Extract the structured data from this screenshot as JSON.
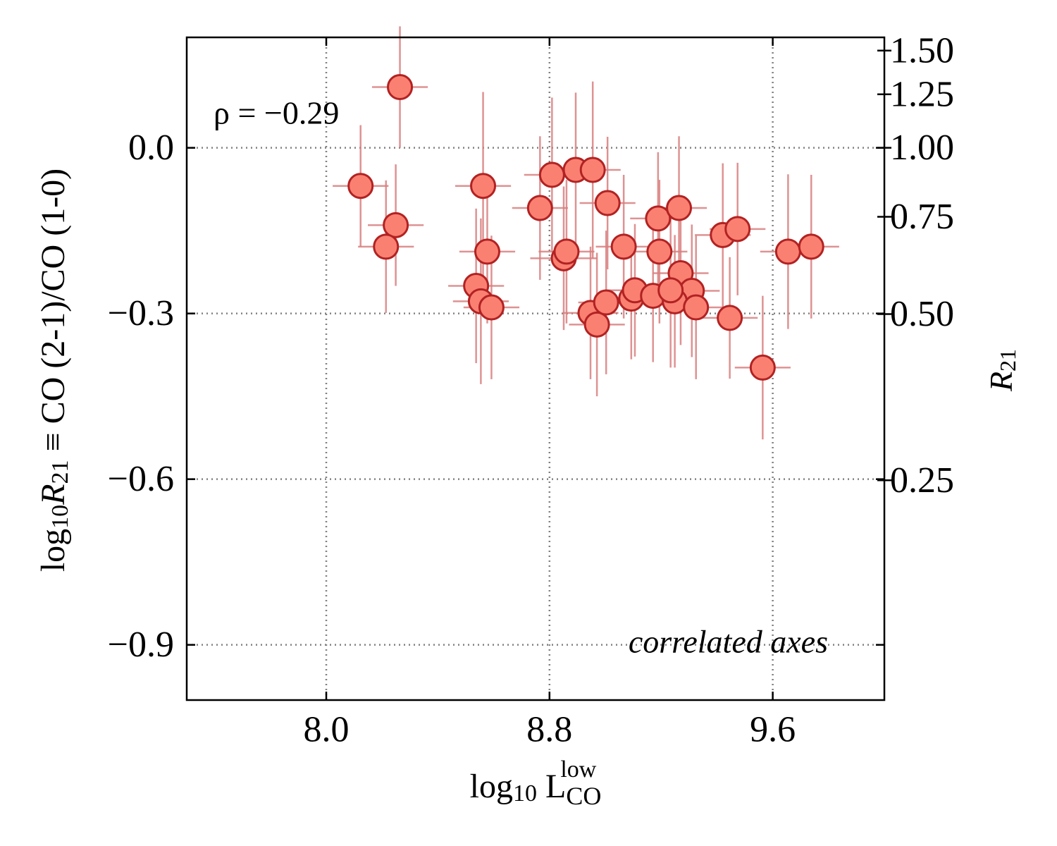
{
  "chart_data": {
    "type": "scatter",
    "annotations": [
      "ρ = −0.29",
      "correlated axes"
    ],
    "xlabel": [
      "log",
      "10",
      " L",
      "CO",
      "low"
    ],
    "ylabel": [
      "log",
      "10",
      "R",
      "21",
      " ≡ CO (2-1)/CO (1-0)"
    ],
    "y2label": [
      "R",
      "21"
    ],
    "xlim": [
      7.5,
      10.0
    ],
    "ylim": [
      -1.0,
      0.2
    ],
    "y2lim": [
      0.1,
      1.585
    ],
    "y2scale": "log",
    "xticks": [
      {
        "value": 8.0,
        "label": "8.0"
      },
      8.8,
      9.6
    ],
    "yticks": [
      {
        "value": -0.9,
        "label": "−0.9"
      },
      {
        "value": -0.6,
        "label": "−0.6"
      },
      {
        "value": -0.3,
        "label": "−0.3"
      },
      {
        "value": 0,
        "label": "0.0"
      }
    ],
    "y2ticks": [
      0.25,
      {
        "value": 0.5,
        "label": "0.50"
      },
      0.75,
      {
        "value": 1.0,
        "label": "1.00"
      },
      1.25,
      {
        "value": 1.5,
        "label": "1.50"
      }
    ],
    "grid": true,
    "series": [
      {
        "color": "#fa8072",
        "edgecolor": "#b22222",
        "errorcolor": "#d98080",
        "x": [
          8.264,
          8.123,
          8.249,
          8.214,
          8.562,
          8.577,
          8.537,
          8.554,
          8.592,
          8.766,
          8.809,
          8.894,
          8.955,
          8.851,
          8.861,
          9.008,
          9.066,
          8.947,
          8.97,
          9.003,
          9.093,
          9.106,
          9.171,
          9.189,
          9.194,
          9.264,
          9.27,
          9.31,
          9.249,
          9.234,
          9.325,
          9.421,
          9.474,
          9.446,
          9.564,
          9.655,
          9.738
        ],
        "y": [
          0.11,
          -0.069,
          -0.14,
          -0.179,
          -0.069,
          -0.188,
          -0.25,
          -0.278,
          -0.289,
          -0.109,
          -0.049,
          -0.04,
          -0.04,
          -0.2,
          -0.188,
          -0.1,
          -0.179,
          -0.299,
          -0.32,
          -0.28,
          -0.273,
          -0.258,
          -0.268,
          -0.128,
          -0.188,
          -0.109,
          -0.227,
          -0.259,
          -0.278,
          -0.258,
          -0.289,
          -0.158,
          -0.147,
          -0.308,
          -0.398,
          -0.188,
          -0.179
        ],
        "xerr": [
          0.1,
          0.1,
          0.1,
          0.1,
          0.1,
          0.1,
          0.1,
          0.1,
          0.1,
          0.1,
          0.1,
          0.1,
          0.1,
          0.12,
          0.1,
          0.1,
          0.1,
          0.1,
          0.1,
          0.1,
          0.1,
          0.1,
          0.1,
          0.1,
          0.1,
          0.1,
          0.1,
          0.1,
          0.1,
          0.1,
          0.1,
          0.1,
          0.1,
          0.1,
          0.1,
          0.1,
          0.1
        ],
        "yerr": [
          0.11,
          0.11,
          0.11,
          0.12,
          0.17,
          0.13,
          0.14,
          0.15,
          0.13,
          0.13,
          0.14,
          0.14,
          0.16,
          0.13,
          0.13,
          0.12,
          0.13,
          0.12,
          0.13,
          0.13,
          0.11,
          0.12,
          0.12,
          0.12,
          0.13,
          0.13,
          0.13,
          0.12,
          0.12,
          0.14,
          0.13,
          0.13,
          0.12,
          0.11,
          0.13,
          0.14,
          0.13
        ]
      }
    ]
  }
}
